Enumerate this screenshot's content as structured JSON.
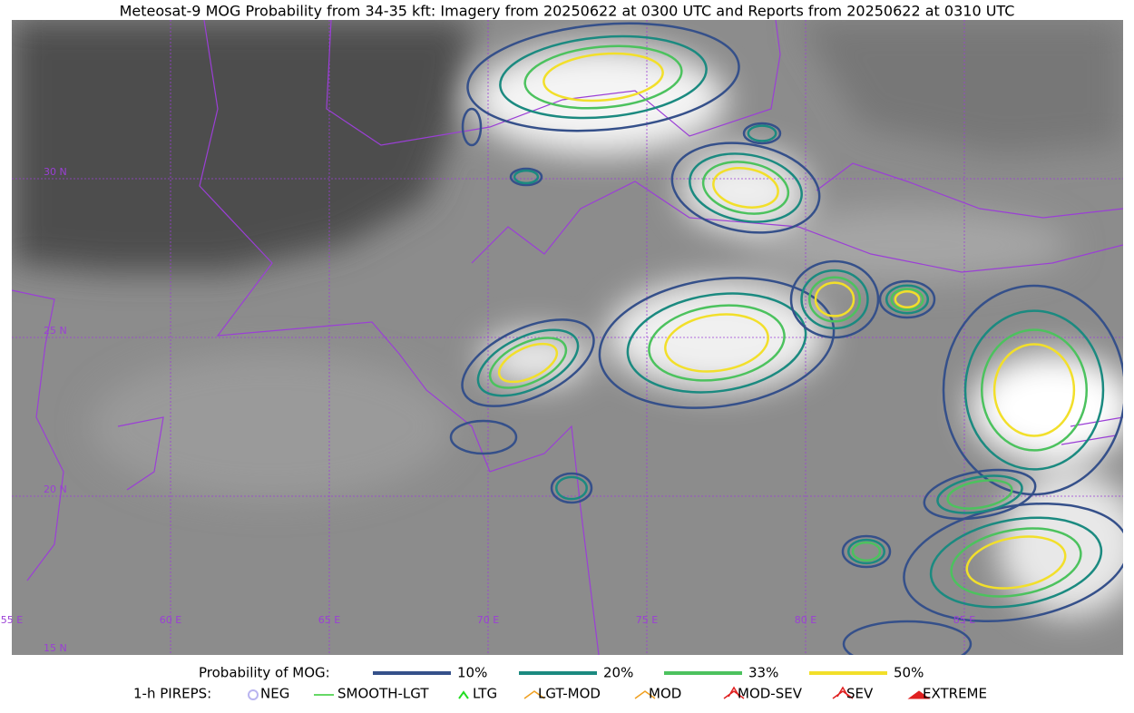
{
  "title": "Meteosat-9 MOG Probability from 34-35 kft: Imagery from 20250622 at 0300 UTC and Reports from 20250622 at 0310 UTC",
  "map": {
    "lat_labels": [
      "30 N",
      "25 N",
      "20 N",
      "15 N"
    ],
    "lon_labels": [
      "55 E",
      "60 E",
      "65 E",
      "70 E",
      "75 E",
      "80 E",
      "85 E"
    ]
  },
  "legend": {
    "probability_title": "Probability of MOG:",
    "levels": [
      {
        "label": "10%",
        "color": "#35508a"
      },
      {
        "label": "20%",
        "color": "#1b8a80"
      },
      {
        "label": "33%",
        "color": "#4cc25e"
      },
      {
        "label": "50%",
        "color": "#f2df2a"
      }
    ],
    "pireps_title": "1-h PIREPS:",
    "pireps": [
      {
        "label": "NEG",
        "color": "#b9b4f0"
      },
      {
        "label": "SMOOTH-LGT",
        "color": "#33cc33"
      },
      {
        "label": "LTG",
        "color": "#22dd22"
      },
      {
        "label": "LGT-MOD",
        "color": "#f0a020"
      },
      {
        "label": "MOD",
        "color": "#f0a020"
      },
      {
        "label": "MOD-SEV",
        "color": "#e02020"
      },
      {
        "label": "SEV",
        "color": "#e02020"
      },
      {
        "label": "EXTREME",
        "color": "#e02020"
      }
    ]
  }
}
